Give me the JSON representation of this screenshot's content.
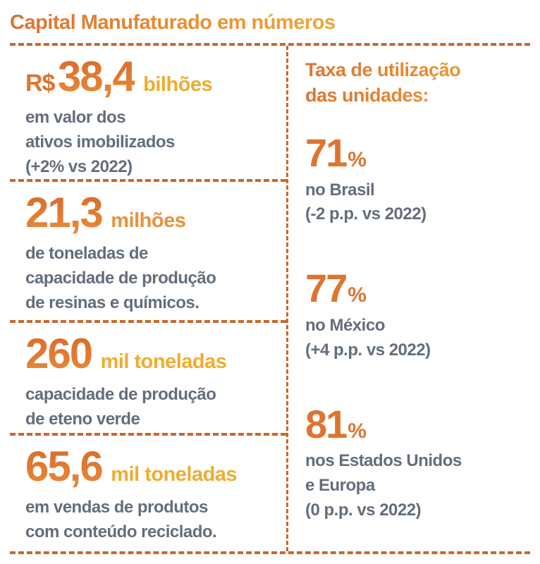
{
  "title": "Capital Manufaturado em números",
  "colors": {
    "orange": "#de7430",
    "gold": "#f0ac2f",
    "gray_text": "#636e7b",
    "dashed_rule": "#c8682b"
  },
  "left_stats": [
    {
      "prefix": "R$",
      "value": "38,4",
      "unit": "bilhões",
      "lines": [
        "em valor dos",
        "ativos imobilizados",
        "(+2% vs 2022)"
      ]
    },
    {
      "value": "21,3",
      "unit": "milhões",
      "lines": [
        "de toneladas de",
        "capacidade de produção",
        "de resinas e químicos."
      ]
    },
    {
      "value": "260",
      "unit": "mil toneladas",
      "lines": [
        "capacidade de produção",
        "de eteno verde"
      ]
    },
    {
      "value": "65,6",
      "unit": "mil toneladas",
      "lines": [
        "em vendas de produtos",
        "com conteúdo reciclado."
      ]
    }
  ],
  "right_panel": {
    "header_line1": "Taxa de utilização",
    "header_line2": "das unidades:",
    "stats": [
      {
        "value": "71",
        "percent": "%",
        "lines": [
          "no Brasil",
          "(-2 p.p. vs 2022)"
        ]
      },
      {
        "value": "77",
        "percent": "%",
        "lines": [
          "no México",
          "(+4 p.p. vs 2022)"
        ]
      },
      {
        "value": "81",
        "percent": "%",
        "lines": [
          "nos Estados Unidos",
          "e Europa",
          "(0 p.p. vs 2022)"
        ]
      }
    ]
  }
}
